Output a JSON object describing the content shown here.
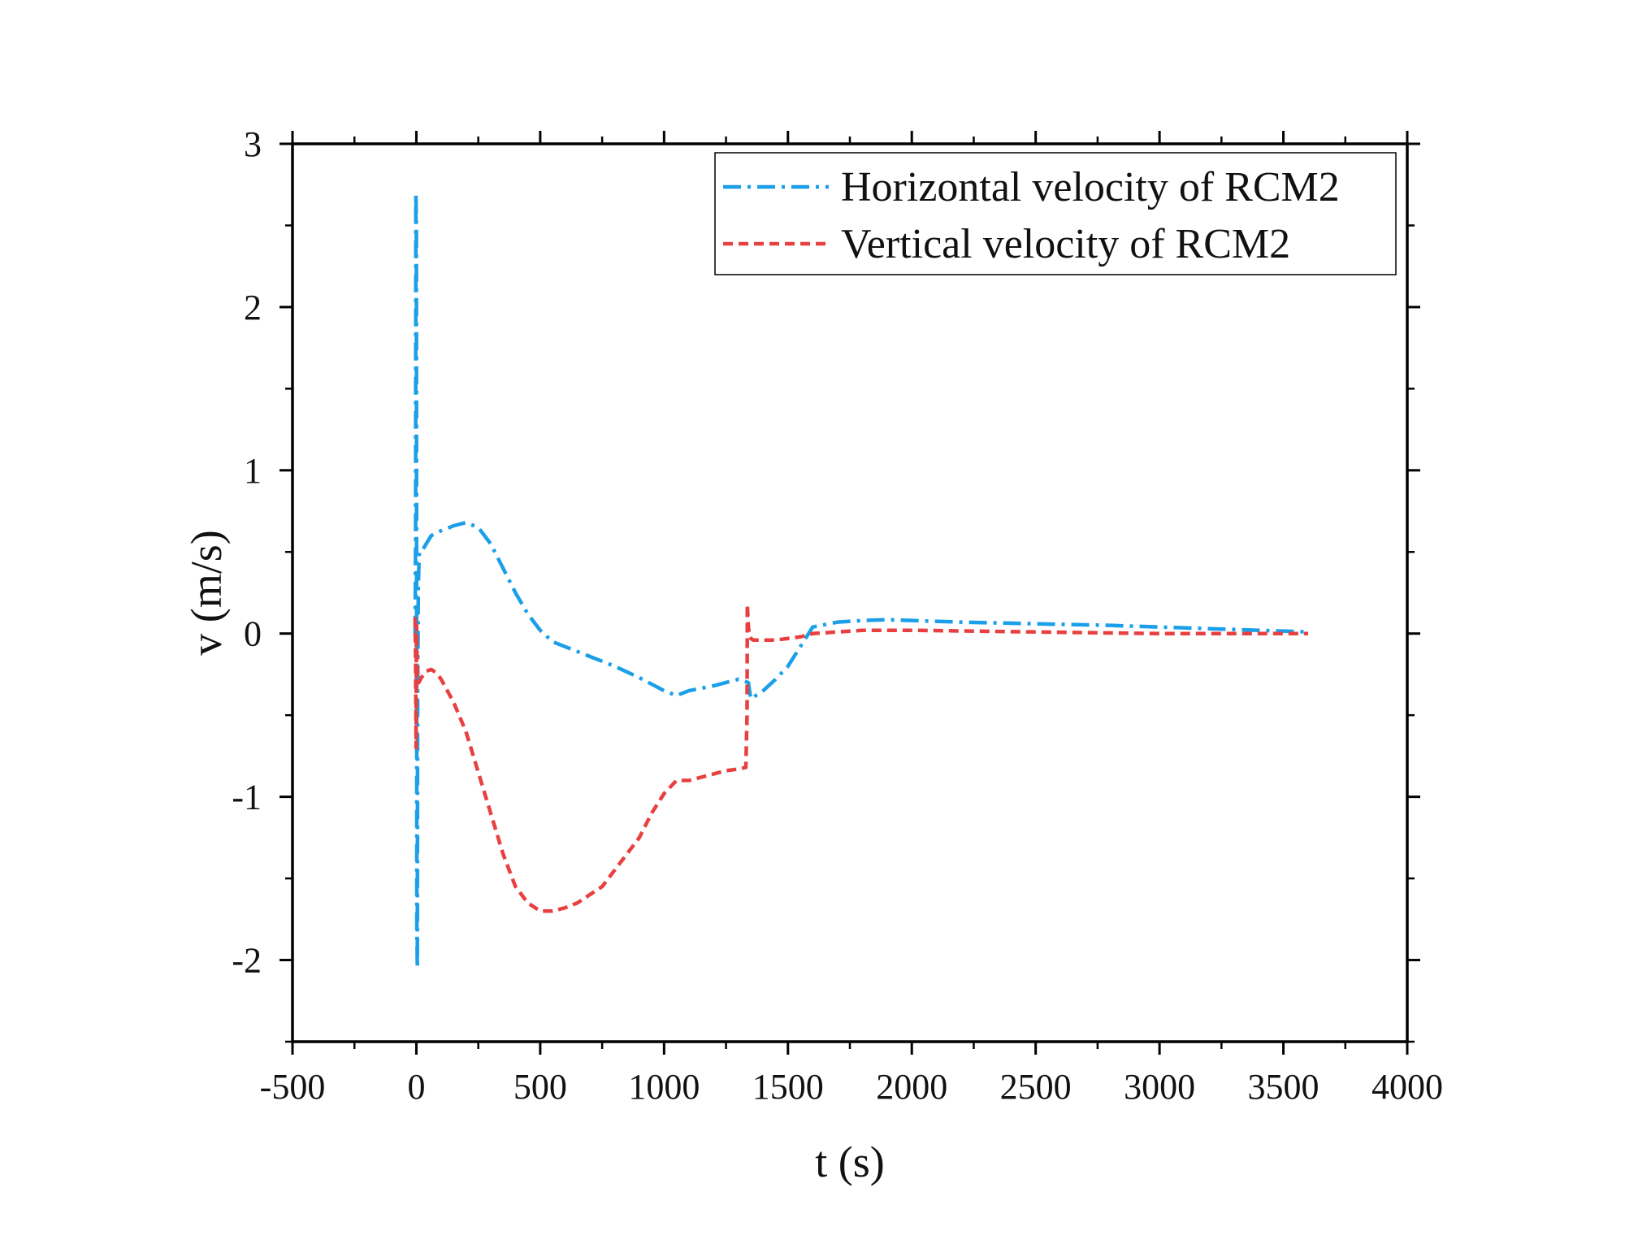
{
  "chart_data": {
    "type": "line",
    "title": "",
    "xlabel": "t (s)",
    "ylabel": "v (m/s)",
    "xlim": [
      -500,
      4000
    ],
    "ylim": [
      -2.5,
      3
    ],
    "xticks": [
      -500,
      0,
      500,
      1000,
      1500,
      2000,
      2500,
      3000,
      3500,
      4000
    ],
    "xtick_labels": [
      "-500",
      "0",
      "500",
      "1000",
      "1500",
      "2000",
      "2500",
      "3000",
      "3500",
      "4000"
    ],
    "yticks": [
      -2,
      -1,
      0,
      1,
      2,
      3
    ],
    "ytick_labels": [
      "-2",
      "-1",
      "0",
      "1",
      "2",
      "3"
    ],
    "grid": false,
    "legend_position": "top-right",
    "series": [
      {
        "name": "Horizontal velocity of RCM2",
        "color": "#1a9fe8",
        "dash": "dash-dot",
        "x": [
          -5,
          -3,
          -2,
          0,
          1,
          2,
          4,
          5,
          8,
          12,
          20,
          40,
          60,
          100,
          150,
          200,
          250,
          300,
          350,
          400,
          450,
          500,
          550,
          600,
          700,
          800,
          900,
          1000,
          1050,
          1100,
          1200,
          1300,
          1340,
          1350,
          1400,
          1450,
          1500,
          1550,
          1600,
          1700,
          1800,
          1900,
          2000,
          2200,
          2500,
          2800,
          3000,
          3200,
          3400,
          3600
        ],
        "y": [
          0.0,
          0.6,
          2.7,
          2.5,
          0.3,
          -1.8,
          -2.05,
          -0.5,
          0.3,
          0.5,
          0.5,
          0.55,
          0.6,
          0.63,
          0.66,
          0.68,
          0.65,
          0.55,
          0.4,
          0.25,
          0.12,
          0.02,
          -0.05,
          -0.08,
          -0.14,
          -0.2,
          -0.27,
          -0.35,
          -0.38,
          -0.35,
          -0.32,
          -0.28,
          -0.3,
          -0.4,
          -0.35,
          -0.28,
          -0.2,
          -0.08,
          0.04,
          0.07,
          0.08,
          0.085,
          0.08,
          0.07,
          0.06,
          0.05,
          0.04,
          0.03,
          0.02,
          0.01
        ]
      },
      {
        "name": "Vertical velocity of RCM2",
        "color": "#e84040",
        "dash": "dashed",
        "x": [
          -5,
          -3,
          -1,
          0,
          1,
          2,
          5,
          10,
          20,
          40,
          60,
          80,
          100,
          150,
          200,
          250,
          300,
          350,
          400,
          450,
          500,
          550,
          600,
          650,
          700,
          750,
          800,
          850,
          900,
          950,
          1000,
          1050,
          1100,
          1150,
          1200,
          1250,
          1300,
          1330,
          1335,
          1336,
          1340,
          1345,
          1350,
          1360,
          1400,
          1450,
          1500,
          1550,
          1600,
          1700,
          1800,
          2000,
          2500,
          3000,
          3500,
          3600
        ],
        "y": [
          0.1,
          -0.2,
          -0.7,
          0.0,
          0.05,
          -0.1,
          -0.25,
          -0.3,
          -0.27,
          -0.23,
          -0.22,
          -0.24,
          -0.28,
          -0.42,
          -0.6,
          -0.85,
          -1.1,
          -1.35,
          -1.55,
          -1.65,
          -1.7,
          -1.7,
          -1.68,
          -1.65,
          -1.6,
          -1.55,
          -1.45,
          -1.35,
          -1.25,
          -1.1,
          -0.98,
          -0.9,
          -0.9,
          -0.88,
          -0.86,
          -0.84,
          -0.83,
          -0.82,
          -0.5,
          0.18,
          0.05,
          -0.02,
          -0.03,
          -0.04,
          -0.04,
          -0.04,
          -0.03,
          -0.02,
          0.0,
          0.01,
          0.02,
          0.02,
          0.01,
          0.0,
          0.0,
          0.0
        ]
      }
    ]
  }
}
